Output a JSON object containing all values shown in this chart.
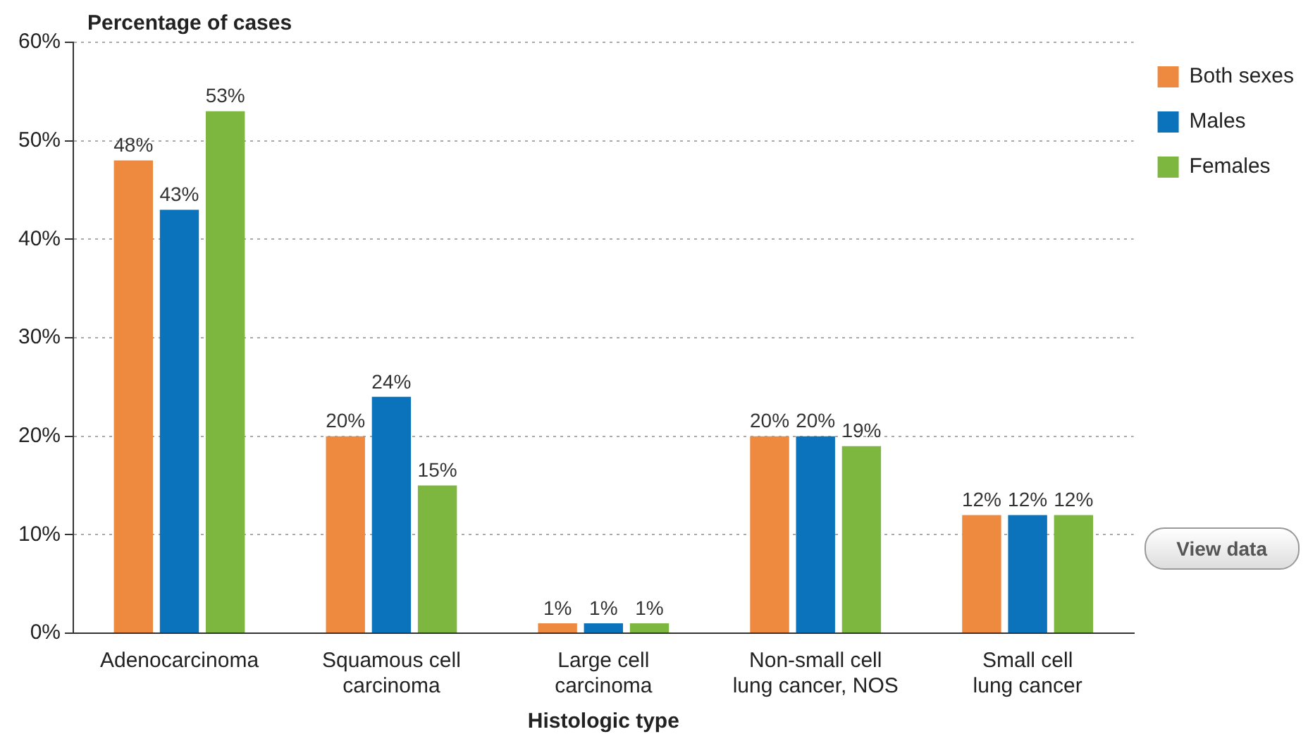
{
  "chart_data": {
    "type": "bar",
    "ylabel": "Percentage of cases",
    "xlabel": "Histologic type",
    "categories": [
      "Adenocarcinoma",
      "Squamous cell\ncarcinoma",
      "Large cell\ncarcinoma",
      "Non-small cell\nlung cancer, NOS",
      "Small cell\nlung cancer"
    ],
    "series": [
      {
        "name": "Both sexes",
        "color": "#ee8a3f",
        "values": [
          48,
          20,
          1,
          20,
          12
        ],
        "value_labels": [
          "48%",
          "20%",
          "1%",
          "20%",
          "12%"
        ]
      },
      {
        "name": "Males",
        "color": "#0a73bb",
        "values": [
          43,
          24,
          1,
          20,
          12
        ],
        "value_labels": [
          "43%",
          "24%",
          "1%",
          "20%",
          "12%"
        ]
      },
      {
        "name": "Females",
        "color": "#7db73f",
        "values": [
          53,
          15,
          1,
          19,
          12
        ],
        "value_labels": [
          "53%",
          "15%",
          "1%",
          "19%",
          "12%"
        ]
      }
    ],
    "ylim": [
      0,
      60
    ],
    "yticks": [
      {
        "value": 0,
        "label": "0%"
      },
      {
        "value": 10,
        "label": "10%"
      },
      {
        "value": 20,
        "label": "20%"
      },
      {
        "value": 30,
        "label": "30%"
      },
      {
        "value": 40,
        "label": "40%"
      },
      {
        "value": 50,
        "label": "50%"
      },
      {
        "value": 60,
        "label": "60%"
      }
    ],
    "grid": "y",
    "legend": "top right",
    "annotations": [
      "View data"
    ]
  }
}
